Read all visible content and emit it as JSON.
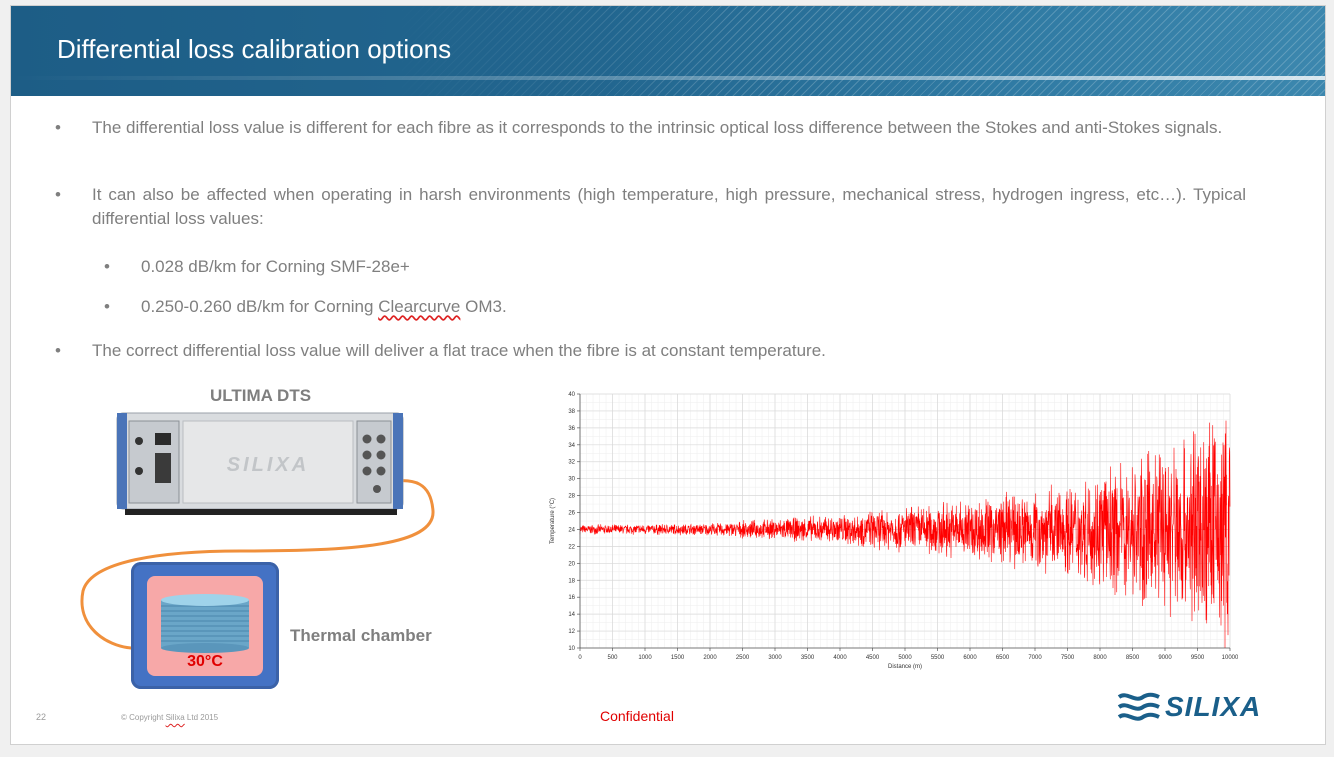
{
  "slide": {
    "title": "Differential loss calibration options",
    "bullets": [
      "The differential loss value is different for each fibre as it corresponds to the intrinsic optical loss difference between the Stokes and anti-Stokes signals.",
      "It can also be affected when operating in harsh environments (high temperature, high pressure, mechanical stress, hydrogen ingress, etc…). Typical differential loss values:",
      "The correct differential loss value will deliver a flat trace when the fibre is at constant temperature."
    ],
    "sub_bullets": [
      {
        "prefix": "0.028 dB/km for Corning SMF-28e+",
        "underlined": "",
        "suffix": ""
      },
      {
        "prefix": "0.250-0.260 dB/km for Corning ",
        "underlined": "Clearcurve",
        "suffix": " OM3."
      }
    ],
    "bullet_glyph": "•"
  },
  "diagram": {
    "device_title": "ULTIMA DTS",
    "device_brand": "SILIXA",
    "chamber_temp": "30°C",
    "chamber_label": "Thermal chamber"
  },
  "chart_data": {
    "type": "line",
    "xlabel": "Distance (m)",
    "ylabel": "Temperature (°C)",
    "xlim": [
      0,
      10000
    ],
    "ylim": [
      10,
      40
    ],
    "x_ticks": [
      0,
      500,
      1000,
      1500,
      2000,
      2500,
      3000,
      3500,
      4000,
      4500,
      5000,
      5500,
      6000,
      6500,
      7000,
      7500,
      8000,
      8500,
      9000,
      9500,
      10000
    ],
    "y_ticks": [
      10,
      12,
      14,
      16,
      18,
      20,
      22,
      24,
      26,
      28,
      30,
      32,
      34,
      36,
      38,
      40
    ],
    "grid": true,
    "series": [
      {
        "color": "#ff0000",
        "mean_temperature": 24,
        "noise_envelope": [
          {
            "distance": 0,
            "amplitude": 0.6
          },
          {
            "distance": 2000,
            "amplitude": 0.8
          },
          {
            "distance": 4000,
            "amplitude": 2.0
          },
          {
            "distance": 6000,
            "amplitude": 4.0
          },
          {
            "distance": 7500,
            "amplitude": 6.0
          },
          {
            "distance": 8500,
            "amplitude": 9.0
          },
          {
            "distance": 9500,
            "amplitude": 14.0
          },
          {
            "distance": 10000,
            "amplitude": 16.0
          }
        ]
      }
    ]
  },
  "footer": {
    "page_number": "22",
    "copyright_prefix": "© Copyright ",
    "copyright_company": "Silixa",
    "copyright_suffix": " Ltd  2015",
    "confidential": "Confidential",
    "logo_text": "SILIXA"
  },
  "colors": {
    "title_bar": "#1d5d86",
    "body_text": "#7f7f7f",
    "accent_red": "#e00000",
    "chamber_blue": "#4472c4",
    "chamber_pink": "#f7a8a8",
    "cable_orange": "#f0903c",
    "logo_blue": "#1a5f8a"
  }
}
